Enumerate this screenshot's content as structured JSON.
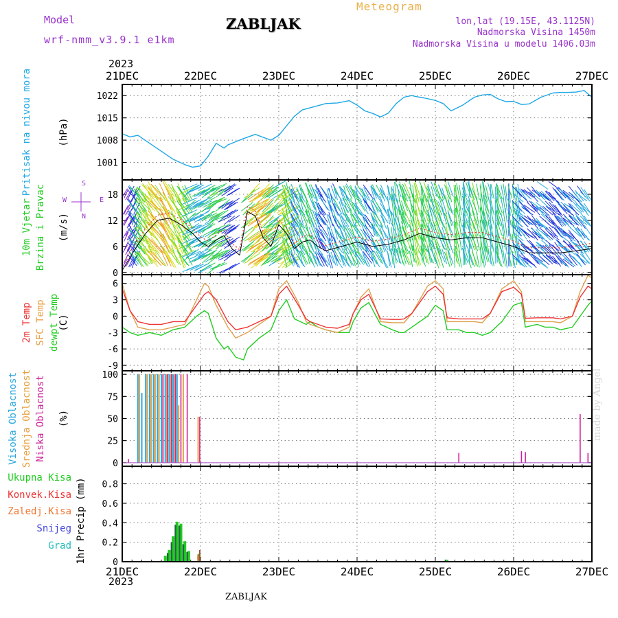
{
  "header": {
    "model_label": "Model",
    "model_name": "wrf-nmm_v3.9.1 e1km",
    "station": "ZABLJAK",
    "meteogram": "Meteogram",
    "lonlat": "lon,lat (19.15E, 43.1125N)",
    "elevation": "Nadmorska Visina 1450m",
    "model_elevation": "Nadmorska Visina u modelu 1406.03m",
    "year_top": "2023",
    "year_bottom": "2023",
    "footer_station": "ZABLJAK",
    "watermark": "made by Angel"
  },
  "colors": {
    "pressure": "#1ea7e6",
    "green": "#22cc22",
    "red": "#ee3333",
    "orange": "#e8a040",
    "blue_label": "#2aa8dd",
    "magenta": "#cc2299",
    "purple": "#9933cc",
    "snow": "#4444dd",
    "grad": "#22bbbb",
    "dark_green": "#1f6a3a"
  },
  "chart_data": [
    {
      "type": "line",
      "panel": "pressure",
      "ylabel": "(hPa)",
      "side_label": [
        "Pritisak na nivou mora"
      ],
      "xticks": [
        "21DEC",
        "22DEC",
        "23DEC",
        "24DEC",
        "25DEC",
        "26DEC",
        "27DEC"
      ],
      "yticks": [
        1001,
        1008,
        1015,
        1022
      ],
      "ylim": [
        995.5,
        1025.5
      ],
      "grid": true,
      "series": [
        {
          "name": "Pritisak na nivou mora",
          "x": [
            0,
            0.1,
            0.2,
            0.35,
            0.5,
            0.65,
            0.8,
            0.9,
            1.0,
            1.1,
            1.2,
            1.3,
            1.35,
            1.45,
            1.55,
            1.7,
            1.9,
            2.0,
            2.1,
            2.2,
            2.3,
            2.45,
            2.6,
            2.75,
            2.9,
            3.0,
            3.1,
            3.2,
            3.3,
            3.4,
            3.5,
            3.6,
            3.7,
            3.75,
            3.85,
            4.0,
            4.1,
            4.2,
            4.35,
            4.5,
            4.6,
            4.7,
            4.8,
            4.9,
            5.0,
            5.1,
            5.2,
            5.35,
            5.5,
            5.6,
            5.7,
            5.8,
            5.9,
            6.0
          ],
          "y": [
            1010,
            1009,
            1009.5,
            1007,
            1004.5,
            1002,
            1000.3,
            999.5,
            999.9,
            1003,
            1007,
            1005.5,
            1006.5,
            1007.5,
            1008.5,
            1009.8,
            1008,
            1009.5,
            1012.5,
            1015.5,
            1017.5,
            1018.5,
            1019.5,
            1019.7,
            1020.4,
            1019,
            1017.2,
            1016.4,
            1015.3,
            1016.5,
            1019.5,
            1021.5,
            1022,
            1021.7,
            1021.3,
            1020.5,
            1019.5,
            1017.2,
            1019,
            1021.5,
            1022.2,
            1022.4,
            1021,
            1020.1,
            1020.2,
            1019.2,
            1019.4,
            1021.5,
            1022.8,
            1023,
            1023,
            1023.1,
            1023.6,
            1021.5
          ]
        }
      ]
    },
    {
      "type": "line",
      "panel": "wind",
      "ylabel": "(m/s)",
      "side_label": [
        "10m Vjetar",
        "Brzina i Pravac"
      ],
      "compass": {
        "n": "N",
        "s": "S",
        "w": "W",
        "e": "E"
      },
      "yticks": [
        0,
        6,
        12,
        18
      ],
      "ylim": [
        -0.5,
        21.3
      ],
      "grid": true,
      "series": [
        {
          "name": "Brzina vjetra",
          "x": [
            0,
            0.05,
            0.15,
            0.3,
            0.45,
            0.6,
            0.75,
            0.9,
            1.0,
            1.1,
            1.2,
            1.3,
            1.4,
            1.5,
            1.6,
            1.7,
            1.8,
            1.9,
            2.0,
            2.1,
            2.2,
            2.3,
            2.4,
            2.5,
            2.6,
            2.7,
            2.8,
            2.9,
            3.0,
            3.2,
            3.4,
            3.6,
            3.8,
            4.0,
            4.2,
            4.4,
            4.6,
            4.8,
            5.0,
            5.2,
            5.4,
            5.6,
            5.8,
            6.0
          ],
          "y": [
            0.5,
            2,
            5,
            9,
            12,
            12.5,
            11,
            9,
            7,
            6,
            7.5,
            8.5,
            5.5,
            4,
            14,
            13,
            8,
            6,
            11,
            9,
            5.5,
            7,
            7.5,
            6,
            5,
            5.5,
            6,
            6.5,
            7,
            6,
            6.5,
            7.5,
            9,
            8,
            7.5,
            8,
            8,
            7,
            6,
            4.5,
            4.5,
            4.5,
            5,
            5.5
          ]
        }
      ]
    },
    {
      "type": "line",
      "panel": "temperature",
      "ylabel": "(C)",
      "side_label": [
        "2m Temp",
        "SFC Temp",
        "dewpt Temp"
      ],
      "yticks": [
        -9,
        -6,
        -3,
        0,
        3,
        6
      ],
      "ylim": [
        -10,
        7.6
      ],
      "grid": true,
      "series": [
        {
          "name": "2m Temp",
          "x": [
            0,
            0.1,
            0.2,
            0.35,
            0.5,
            0.65,
            0.8,
            0.95,
            1.05,
            1.1,
            1.2,
            1.35,
            1.45,
            1.6,
            1.75,
            1.9,
            2.0,
            2.1,
            2.25,
            2.35,
            2.4,
            2.5,
            2.6,
            2.75,
            2.9,
            2.95,
            3.05,
            3.15,
            3.3,
            3.45,
            3.55,
            3.6,
            3.7,
            3.9,
            4.0,
            4.1,
            4.15,
            4.3,
            4.4,
            4.5,
            4.6,
            4.7,
            4.85,
            5.0,
            5.1,
            5.15,
            5.3,
            5.4,
            5.5,
            5.6,
            5.75,
            5.85,
            5.95,
            6.0
          ],
          "y": [
            5,
            1,
            -1,
            -1.5,
            -1.5,
            -1,
            -1,
            2,
            4,
            4.5,
            3,
            -1,
            -2.5,
            -2,
            -1,
            0,
            4,
            5.5,
            2,
            -0.5,
            -1,
            -1.5,
            -2,
            -2.2,
            -1.5,
            0.5,
            3,
            4,
            -0.5,
            -0.6,
            -0.6,
            -0.5,
            0.5,
            4.5,
            5.5,
            4,
            -0.3,
            -0.5,
            -0.5,
            -0.5,
            -0.5,
            0.5,
            4.5,
            5.3,
            4,
            -0.4,
            -0.3,
            -0.3,
            -0.3,
            -0.5,
            0,
            3.5,
            5.5,
            5
          ]
        },
        {
          "name": "SFC Temp",
          "x": [
            0,
            0.1,
            0.2,
            0.35,
            0.5,
            0.65,
            0.8,
            0.95,
            1.05,
            1.1,
            1.2,
            1.35,
            1.45,
            1.6,
            1.75,
            1.9,
            2.0,
            2.1,
            2.25,
            2.35,
            2.4,
            2.5,
            2.6,
            2.75,
            2.9,
            2.95,
            3.05,
            3.15,
            3.3,
            3.45,
            3.55,
            3.6,
            3.7,
            3.9,
            4.0,
            4.1,
            4.15,
            4.3,
            4.4,
            4.5,
            4.6,
            4.7,
            4.85,
            5.0,
            5.1,
            5.15,
            5.3,
            5.4,
            5.5,
            5.6,
            5.75,
            5.85,
            5.95,
            6.0
          ],
          "y": [
            6,
            1,
            -2,
            -2.5,
            -2.5,
            -2,
            -1.5,
            3,
            6,
            5.5,
            2,
            -2,
            -4,
            -3,
            -1.5,
            0,
            5,
            6.5,
            2.5,
            -1,
            -1.5,
            -2,
            -2.5,
            -3,
            -2,
            0.5,
            3.5,
            5,
            -1,
            -1.2,
            -1.2,
            -1.2,
            0.5,
            5.5,
            6.5,
            5,
            -1,
            -1,
            -1,
            -1,
            -1.2,
            0.5,
            5,
            6.5,
            4.5,
            -1,
            -1,
            -1,
            -1,
            -1.2,
            0,
            4.5,
            7.5,
            7
          ]
        },
        {
          "name": "dewpt Temp",
          "x": [
            0,
            0.1,
            0.2,
            0.35,
            0.5,
            0.65,
            0.8,
            0.95,
            1.05,
            1.1,
            1.2,
            1.3,
            1.35,
            1.45,
            1.55,
            1.6,
            1.75,
            1.9,
            2.0,
            2.1,
            2.2,
            2.35,
            2.4,
            2.5,
            2.6,
            2.75,
            2.9,
            2.95,
            3.05,
            3.15,
            3.3,
            3.45,
            3.55,
            3.6,
            3.7,
            3.9,
            4.0,
            4.1,
            4.15,
            4.3,
            4.4,
            4.5,
            4.6,
            4.7,
            4.85,
            5.0,
            5.1,
            5.15,
            5.3,
            5.4,
            5.5,
            5.6,
            5.75,
            5.85,
            5.95,
            6.0
          ],
          "y": [
            -2,
            -3,
            -3.5,
            -3,
            -3.5,
            -2.5,
            -2,
            0,
            1,
            0.5,
            -4,
            -6,
            -5.5,
            -7.5,
            -8,
            -6,
            -4,
            -2.5,
            1,
            3,
            -0.5,
            -1.5,
            -1,
            -2,
            -2.5,
            -3,
            -3,
            -1,
            1.5,
            2.5,
            -1.5,
            -2.5,
            -3,
            -3,
            -2,
            0,
            2,
            1,
            -2.5,
            -2.5,
            -3,
            -3,
            -3.5,
            -3,
            -1,
            2,
            2.5,
            -2,
            -1.5,
            -2,
            -2,
            -2.5,
            -2,
            0,
            2,
            2.8
          ]
        }
      ]
    },
    {
      "type": "bar",
      "panel": "cloud",
      "ylabel": "(%)",
      "side_label": [
        "Visoka Oblacnost",
        "Srednja Oblacnost",
        "Niska Oblacnost"
      ],
      "yticks": [
        0,
        25,
        50,
        75,
        100
      ],
      "ylim": [
        -4,
        104
      ],
      "grid": true,
      "series": [
        {
          "name": "Visoka Oblacnost",
          "x": [
            0.2,
            0.25,
            0.3,
            0.35,
            0.4,
            0.45,
            0.5,
            0.55,
            0.6,
            0.65,
            0.7
          ],
          "values": [
            100,
            79,
            100,
            100,
            100,
            100,
            100,
            100,
            100,
            100,
            100
          ]
        },
        {
          "name": "Srednja Oblacnost",
          "x": [
            0.22,
            0.32,
            0.37,
            0.42,
            0.47,
            0.52,
            0.57,
            0.62,
            0.67,
            0.72,
            0.78,
            0.97
          ],
          "values": [
            100,
            100,
            100,
            100,
            100,
            100,
            100,
            100,
            100,
            65,
            100,
            52
          ]
        },
        {
          "name": "Niska Oblacnost",
          "x": [
            0.08,
            0.52,
            0.58,
            0.63,
            0.68,
            0.75,
            0.83,
            0.99,
            4.3,
            5.1,
            5.15,
            5.85,
            5.95
          ],
          "values": [
            4,
            100,
            100,
            100,
            100,
            100,
            100,
            52,
            11,
            13,
            12,
            55,
            11
          ]
        }
      ]
    },
    {
      "type": "bar",
      "panel": "precip",
      "ylabel": "1hr Precip (mm)",
      "side_label": [
        "Ukupna Kisa",
        "Konvek.Kisa",
        "Zaledj.Kisa",
        "Snijeg",
        "Grad"
      ],
      "yticks": [
        0,
        0.2,
        0.4,
        0.6,
        0.8
      ],
      "ylim": [
        0,
        0.98
      ],
      "grid": true,
      "series": [
        {
          "name": "Ukupna Kisa",
          "x": [
            0.55,
            0.6,
            0.65,
            0.7,
            0.75,
            0.8,
            0.85,
            0.98,
            4.15
          ],
          "values": [
            0.06,
            0.12,
            0.26,
            0.41,
            0.39,
            0.21,
            0.11,
            0.08,
            0.02
          ]
        },
        {
          "name": "Konvek.Kisa",
          "x": [
            0.99
          ],
          "values": [
            0.12
          ]
        },
        {
          "name": "Zaledj.Kisa",
          "x": [
            0.97
          ],
          "values": [
            0.07
          ]
        },
        {
          "name": "Snijeg",
          "x": [],
          "values": []
        },
        {
          "name": "Grad",
          "x": [
            0.58,
            0.63,
            0.68,
            0.73,
            0.78,
            0.83
          ],
          "values": [
            0.09,
            0.2,
            0.38,
            0.37,
            0.18,
            0.1
          ]
        }
      ]
    }
  ]
}
